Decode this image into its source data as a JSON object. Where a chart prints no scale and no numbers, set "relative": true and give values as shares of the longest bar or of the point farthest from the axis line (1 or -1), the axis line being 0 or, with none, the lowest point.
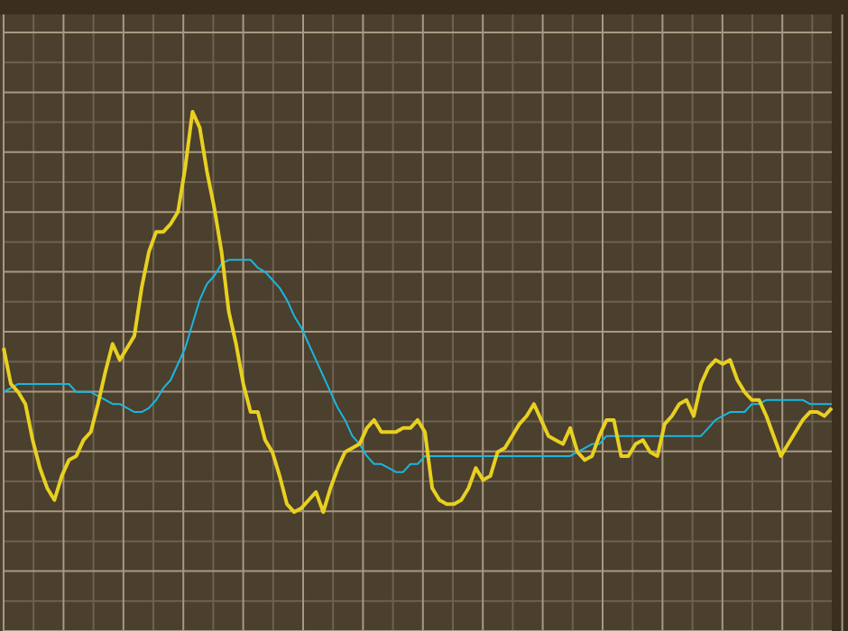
{
  "chart_data": {
    "type": "line",
    "relative": true,
    "grid": true,
    "marker": "none",
    "categories": [
      null,
      null,
      null,
      null,
      null,
      null,
      null,
      null,
      null,
      null,
      null,
      null,
      null,
      null,
      null,
      null,
      null,
      null,
      null,
      null,
      null,
      null,
      null,
      null,
      null,
      null,
      null,
      null,
      null,
      null,
      null,
      null,
      null,
      null,
      null,
      null,
      null,
      null,
      null,
      null,
      null,
      null,
      null,
      null,
      null,
      null,
      null,
      null,
      null,
      null,
      null,
      null,
      null,
      null,
      null,
      null,
      null,
      null,
      null,
      null,
      null,
      null,
      null,
      null,
      null,
      null,
      null,
      null,
      null,
      null,
      null,
      null,
      null,
      null,
      null,
      null,
      null,
      null,
      null,
      null,
      null,
      null,
      null,
      null,
      null,
      null,
      null,
      null,
      null,
      null,
      null,
      null,
      null,
      null,
      null,
      null,
      null,
      null,
      null,
      null,
      null,
      null,
      null,
      null,
      null,
      null,
      null,
      null,
      null,
      null,
      null,
      null,
      null,
      null,
      null
    ],
    "series": [
      {
        "color": "#18b8e0",
        "values": [
          0.3,
          0.31,
          0.32,
          0.32,
          0.32,
          0.32,
          0.32,
          0.32,
          0.32,
          0.32,
          0.3,
          0.3,
          0.3,
          0.29,
          0.28,
          0.27,
          0.27,
          0.26,
          0.25,
          0.25,
          0.26,
          0.28,
          0.31,
          0.33,
          0.37,
          0.41,
          0.47,
          0.53,
          0.57,
          0.59,
          0.62,
          0.63,
          0.63,
          0.63,
          0.63,
          0.61,
          0.6,
          0.58,
          0.56,
          0.53,
          0.49,
          0.46,
          0.42,
          0.38,
          0.34,
          0.3,
          0.26,
          0.23,
          0.19,
          0.17,
          0.14,
          0.12,
          0.12,
          0.11,
          0.1,
          0.1,
          0.12,
          0.12,
          0.14,
          0.14,
          0.14,
          0.14,
          0.14,
          0.14,
          0.14,
          0.14,
          0.14,
          0.14,
          0.14,
          0.14,
          0.14,
          0.14,
          0.14,
          0.14,
          0.14,
          0.14,
          0.14,
          0.14,
          0.14,
          0.15,
          0.16,
          0.17,
          0.17,
          0.19,
          0.19,
          0.19,
          0.19,
          0.19,
          0.19,
          0.19,
          0.19,
          0.19,
          0.19,
          0.19,
          0.19,
          0.19,
          0.19,
          0.21,
          0.23,
          0.24,
          0.25,
          0.25,
          0.25,
          0.27,
          0.27,
          0.28,
          0.28,
          0.28,
          0.28,
          0.28,
          0.28,
          0.27,
          0.27,
          0.27,
          0.27
        ]
      },
      {
        "color": "#e8d020",
        "values": [
          0.41,
          0.32,
          0.3,
          0.27,
          0.18,
          0.11,
          0.06,
          0.03,
          0.09,
          0.13,
          0.14,
          0.18,
          0.2,
          0.27,
          0.35,
          0.42,
          0.38,
          0.41,
          0.44,
          0.56,
          0.65,
          0.7,
          0.7,
          0.72,
          0.75,
          0.86,
          1,
          0.96,
          0.85,
          0.76,
          0.65,
          0.5,
          0.42,
          0.32,
          0.25,
          0.25,
          0.18,
          0.15,
          0.09,
          0.02,
          0,
          0.01,
          0.03,
          0.05,
          0,
          0.06,
          0.11,
          0.15,
          0.16,
          0.17,
          0.21,
          0.23,
          0.2,
          0.2,
          0.2,
          0.21,
          0.21,
          0.23,
          0.2,
          0.06,
          0.03,
          0.02,
          0.02,
          0.03,
          0.06,
          0.11,
          0.08,
          0.09,
          0.15,
          0.16,
          0.19,
          0.22,
          0.24,
          0.27,
          0.23,
          0.19,
          0.18,
          0.17,
          0.21,
          0.15,
          0.13,
          0.14,
          0.19,
          0.23,
          0.23,
          0.14,
          0.14,
          0.17,
          0.18,
          0.15,
          0.14,
          0.22,
          0.24,
          0.27,
          0.28,
          0.24,
          0.32,
          0.36,
          0.38,
          0.37,
          0.38,
          0.33,
          0.3,
          0.28,
          0.28,
          0.24,
          0.19,
          0.14,
          0.17,
          0.2,
          0.23,
          0.25,
          0.25,
          0.24,
          0.26
        ]
      }
    ]
  }
}
